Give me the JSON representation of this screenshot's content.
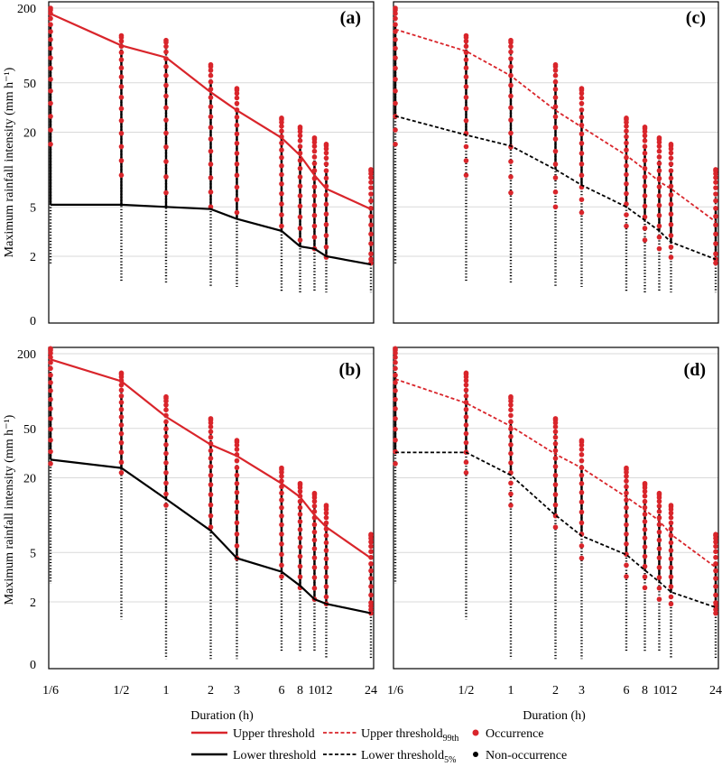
{
  "chart_data": {
    "type": "scatter",
    "ylabel": "Maximum rainfall intensity (mm h⁻¹)",
    "xlabel": "Duration (h)",
    "x_scale": "log",
    "y_scale": "log",
    "x_ticks": [
      {
        "value": 0.1667,
        "label": "1/6"
      },
      {
        "value": 0.5,
        "label": "1/2"
      },
      {
        "value": 1,
        "label": "1"
      },
      {
        "value": 2,
        "label": "2"
      },
      {
        "value": 3,
        "label": "3"
      },
      {
        "value": 6,
        "label": "6"
      },
      {
        "value": 8,
        "label": "8"
      },
      {
        "value": 10,
        "label": "10"
      },
      {
        "value": 12,
        "label": "12"
      },
      {
        "value": 24,
        "label": "24"
      }
    ],
    "y_ticks": [
      {
        "value": 200,
        "label": "200"
      },
      {
        "value": 50,
        "label": "50"
      },
      {
        "value": 20,
        "label": "20"
      },
      {
        "value": 5,
        "label": "5"
      },
      {
        "value": 2,
        "label": "2"
      },
      {
        "value": 0,
        "label": "0"
      }
    ],
    "colors": {
      "upper": "#d9252b",
      "lower": "#000000",
      "occurrence": "#d9252b",
      "non_occurrence": "#000000",
      "grid": "#d9d9d9"
    },
    "legend": {
      "upper_threshold": "Upper threshold",
      "lower_threshold": "Lower threshold",
      "upper_99_main": "Upper threshold",
      "upper_99_sub": "99th",
      "lower_5_main": "Lower threshold",
      "lower_5_sub": "5%",
      "occurrence": "Occurrence",
      "non_occurrence": "Non-occurrence"
    },
    "durations": [
      0.1667,
      0.5,
      1,
      2,
      3,
      6,
      8,
      10,
      12,
      24
    ],
    "panels": [
      {
        "id": "a",
        "label": "(a)",
        "upper_style": "solid",
        "lower_style": "solid",
        "upper": [
          180,
          100,
          80,
          42,
          30,
          18,
          13,
          9,
          7,
          4.8
        ],
        "lower": [
          5.2,
          5.2,
          5.0,
          4.8,
          4.0,
          3.2,
          2.4,
          2.3,
          2.0,
          1.3
        ],
        "occ_max": [
          200,
          120,
          110,
          70,
          45,
          26,
          22,
          18,
          16,
          10
        ],
        "occ_min": [
          16,
          9,
          6.5,
          5.0,
          4.5,
          3.5,
          2.7,
          2.3,
          1.9,
          1.4
        ],
        "nonocc_max": [
          180,
          110,
          95,
          60,
          35,
          22,
          18,
          14,
          12,
          6
        ],
        "nonocc_min": [
          1.3,
          0.5,
          0.5,
          0.4,
          0.4,
          0.3,
          0.3,
          0.3,
          0.3,
          0.3
        ]
      },
      {
        "id": "c",
        "label": "(c)",
        "upper_style": "dashed",
        "lower_style": "dashed",
        "upper": [
          135,
          90,
          57,
          30,
          22,
          13,
          10,
          8,
          7,
          3.8
        ],
        "lower": [
          27,
          19,
          15.5,
          10,
          7.5,
          5,
          3.9,
          3.2,
          2.6,
          1.7
        ],
        "occ_max": [
          200,
          120,
          110,
          70,
          45,
          26,
          22,
          18,
          16,
          10
        ],
        "occ_min": [
          16,
          9,
          6.5,
          5.0,
          4.5,
          3.5,
          2.7,
          2.3,
          1.9,
          1.4
        ],
        "nonocc_max": [
          180,
          110,
          95,
          60,
          35,
          22,
          18,
          14,
          12,
          6
        ],
        "nonocc_min": [
          1.3,
          0.5,
          0.5,
          0.4,
          0.4,
          0.3,
          0.3,
          0.3,
          0.3,
          0.3
        ]
      },
      {
        "id": "b",
        "label": "(b)",
        "upper_style": "solid",
        "lower_style": "solid",
        "upper": [
          180,
          120,
          62,
          37,
          30,
          18,
          14,
          10,
          8,
          4.5
        ],
        "lower": [
          28,
          24,
          13.5,
          7.5,
          4.5,
          3.5,
          2.7,
          2.1,
          1.8,
          1.1
        ],
        "occ_max": [
          220,
          140,
          90,
          60,
          40,
          24,
          18,
          15,
          12,
          7
        ],
        "occ_min": [
          26,
          22,
          12,
          8,
          4.5,
          3.2,
          2.6,
          2.1,
          1.8,
          1.1
        ],
        "nonocc_max": [
          160,
          110,
          70,
          45,
          30,
          20,
          15,
          12,
          10,
          5
        ],
        "nonocc_min": [
          2.8,
          0.8,
          0.1,
          0.1,
          0.1,
          0.15,
          0.15,
          0.15,
          0.1,
          0.1
        ]
      },
      {
        "id": "d",
        "label": "(d)",
        "upper_style": "dashed",
        "lower_style": "dashed",
        "upper": [
          125,
          80,
          52,
          31,
          24,
          14,
          11,
          9,
          7,
          3.8
        ],
        "lower": [
          32,
          32,
          21,
          10,
          6.8,
          4.8,
          3.6,
          2.9,
          2.4,
          1.5
        ],
        "occ_max": [
          220,
          140,
          90,
          60,
          40,
          24,
          18,
          15,
          12,
          7
        ],
        "occ_min": [
          26,
          22,
          12,
          8,
          4.5,
          3.2,
          2.6,
          2.1,
          1.8,
          1.1
        ],
        "nonocc_max": [
          160,
          110,
          70,
          45,
          30,
          20,
          15,
          12,
          10,
          5
        ],
        "nonocc_min": [
          2.8,
          0.8,
          0.1,
          0.1,
          0.1,
          0.15,
          0.15,
          0.15,
          0.1,
          0.1
        ]
      }
    ]
  }
}
